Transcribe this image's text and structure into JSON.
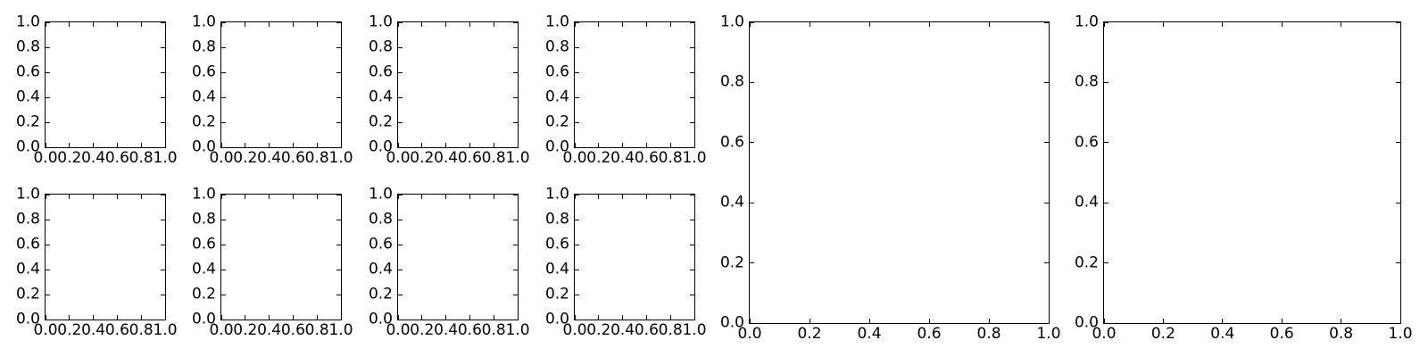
{
  "figure": {
    "background_color": "#ffffff",
    "frame_color": "#000000",
    "tick_label_color": "#000000"
  },
  "chart_data": {
    "type": "line",
    "title": "",
    "grid": false,
    "legend": "none",
    "tick_values": [
      0.0,
      0.2,
      0.4,
      0.6,
      0.8,
      1.0
    ],
    "subplots": [
      {
        "name": "small-row1-col1",
        "xlim": [
          0.0,
          1.0
        ],
        "ylim": [
          0.0,
          1.0
        ],
        "xtick_labels": [
          "0.0",
          "0.2",
          "0.4",
          "0.6",
          "0.8",
          "1.0"
        ],
        "ytick_labels": [
          "0.0",
          "0.2",
          "0.4",
          "0.6",
          "0.8",
          "1.0"
        ],
        "series": []
      },
      {
        "name": "small-row1-col2",
        "xlim": [
          0.0,
          1.0
        ],
        "ylim": [
          0.0,
          1.0
        ],
        "xtick_labels": [
          "0.0",
          "0.2",
          "0.4",
          "0.6",
          "0.8",
          "1.0"
        ],
        "ytick_labels": [
          "0.0",
          "0.2",
          "0.4",
          "0.6",
          "0.8",
          "1.0"
        ],
        "series": []
      },
      {
        "name": "small-row1-col3",
        "xlim": [
          0.0,
          1.0
        ],
        "ylim": [
          0.0,
          1.0
        ],
        "xtick_labels": [
          "0.0",
          "0.2",
          "0.4",
          "0.6",
          "0.8",
          "1.0"
        ],
        "ytick_labels": [
          "0.0",
          "0.2",
          "0.4",
          "0.6",
          "0.8",
          "1.0"
        ],
        "series": []
      },
      {
        "name": "small-row1-col4",
        "xlim": [
          0.0,
          1.0
        ],
        "ylim": [
          0.0,
          1.0
        ],
        "xtick_labels": [
          "0.0",
          "0.2",
          "0.4",
          "0.6",
          "0.8",
          "1.0"
        ],
        "ytick_labels": [
          "0.0",
          "0.2",
          "0.4",
          "0.6",
          "0.8",
          "1.0"
        ],
        "series": []
      },
      {
        "name": "small-row2-col1",
        "xlim": [
          0.0,
          1.0
        ],
        "ylim": [
          0.0,
          1.0
        ],
        "xtick_labels": [
          "0.0",
          "0.2",
          "0.4",
          "0.6",
          "0.8",
          "1.0"
        ],
        "ytick_labels": [
          "0.0",
          "0.2",
          "0.4",
          "0.6",
          "0.8",
          "1.0"
        ],
        "series": []
      },
      {
        "name": "small-row2-col2",
        "xlim": [
          0.0,
          1.0
        ],
        "ylim": [
          0.0,
          1.0
        ],
        "xtick_labels": [
          "0.0",
          "0.2",
          "0.4",
          "0.6",
          "0.8",
          "1.0"
        ],
        "ytick_labels": [
          "0.0",
          "0.2",
          "0.4",
          "0.6",
          "0.8",
          "1.0"
        ],
        "series": []
      },
      {
        "name": "small-row2-col3",
        "xlim": [
          0.0,
          1.0
        ],
        "ylim": [
          0.0,
          1.0
        ],
        "xtick_labels": [
          "0.0",
          "0.2",
          "0.4",
          "0.6",
          "0.8",
          "1.0"
        ],
        "ytick_labels": [
          "0.0",
          "0.2",
          "0.4",
          "0.6",
          "0.8",
          "1.0"
        ],
        "series": []
      },
      {
        "name": "small-row2-col4",
        "xlim": [
          0.0,
          1.0
        ],
        "ylim": [
          0.0,
          1.0
        ],
        "xtick_labels": [
          "0.0",
          "0.2",
          "0.4",
          "0.6",
          "0.8",
          "1.0"
        ],
        "ytick_labels": [
          "0.0",
          "0.2",
          "0.4",
          "0.6",
          "0.8",
          "1.0"
        ],
        "series": []
      },
      {
        "name": "large-col5",
        "xlim": [
          0.0,
          1.0
        ],
        "ylim": [
          0.0,
          1.0
        ],
        "xtick_labels": [
          "0.0",
          "0.2",
          "0.4",
          "0.6",
          "0.8",
          "1.0"
        ],
        "ytick_labels": [
          "0.0",
          "0.2",
          "0.4",
          "0.6",
          "0.8",
          "1.0"
        ],
        "series": []
      },
      {
        "name": "large-col6",
        "xlim": [
          0.0,
          1.0
        ],
        "ylim": [
          0.0,
          1.0
        ],
        "xtick_labels": [
          "0.0",
          "0.2",
          "0.4",
          "0.6",
          "0.8",
          "1.0"
        ],
        "ytick_labels": [
          "0.0",
          "0.2",
          "0.4",
          "0.6",
          "0.8",
          "1.0"
        ],
        "series": []
      }
    ]
  }
}
